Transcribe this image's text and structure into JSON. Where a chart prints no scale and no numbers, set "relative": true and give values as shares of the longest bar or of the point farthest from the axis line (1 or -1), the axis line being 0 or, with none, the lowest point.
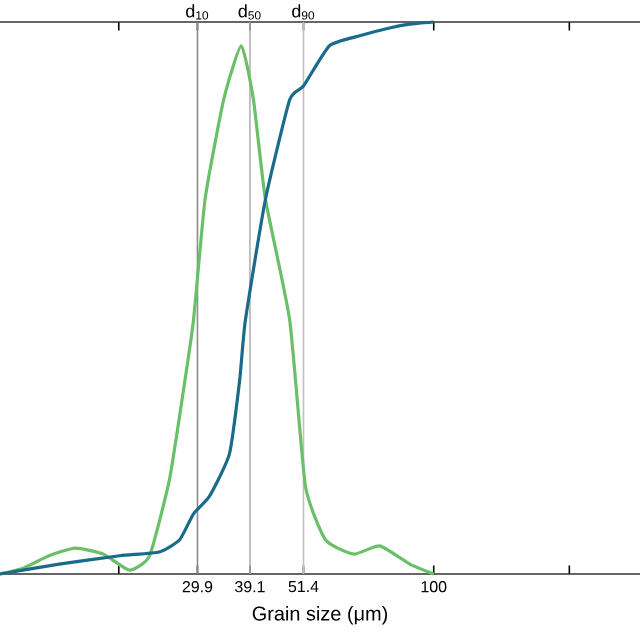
{
  "chart_data": {
    "type": "line",
    "xlabel": "Grain size (μm)",
    "log": "x",
    "relative": true,
    "grid": false,
    "xlim": [
      10.9,
      287
    ],
    "xticks": [
      {
        "value": 20,
        "label": null
      },
      29.9,
      39.1,
      51.4,
      100,
      {
        "value": 200,
        "label": null
      }
    ],
    "x": [
      10.9,
      12.3,
      14.0,
      16.0,
      18.5,
      21.1,
      23.4,
      25.9,
      27.8,
      29.3,
      31.1,
      34.2,
      37.4,
      39.8,
      42.3,
      47.9,
      51.9,
      57.5,
      66.4,
      75.9,
      88.5,
      100
    ],
    "series": [
      {
        "color": "#6abf69",
        "values": [
          0,
          0.011,
          0.033,
          0.047,
          0.036,
          0.007,
          0.033,
          0.17,
          0.33,
          0.46,
          0.68,
          0.86,
          0.957,
          0.86,
          0.68,
          0.46,
          0.16,
          0.062,
          0.036,
          0.051,
          0.018,
          0
        ]
      },
      {
        "color": "#1a6a8a",
        "x": [
          10.9,
          14.75,
          20.1,
          24.6,
          27.3,
          29.3,
          31.8,
          35.2,
          37.1,
          38.2,
          42.3,
          47.9,
          51.4,
          58.7,
          68.5,
          79.8,
          88.5,
          100
        ],
        "values": [
          0,
          0.018,
          0.033,
          0.04,
          0.062,
          0.109,
          0.141,
          0.217,
          0.351,
          0.46,
          0.678,
          0.859,
          0.884,
          0.957,
          0.975,
          0.989,
          0.996,
          1
        ]
      }
    ],
    "ref_lines": [
      {
        "axis": "x",
        "value": 29.9,
        "label": "d$_{10}$",
        "color": "#8c8c8c"
      },
      {
        "axis": "x",
        "value": 39.1,
        "label": "d$_{50}$",
        "color": "#b0b0b0"
      },
      {
        "axis": "x",
        "value": 51.4,
        "label": "d$_{90}$",
        "color": "#c0c0c0"
      }
    ]
  }
}
